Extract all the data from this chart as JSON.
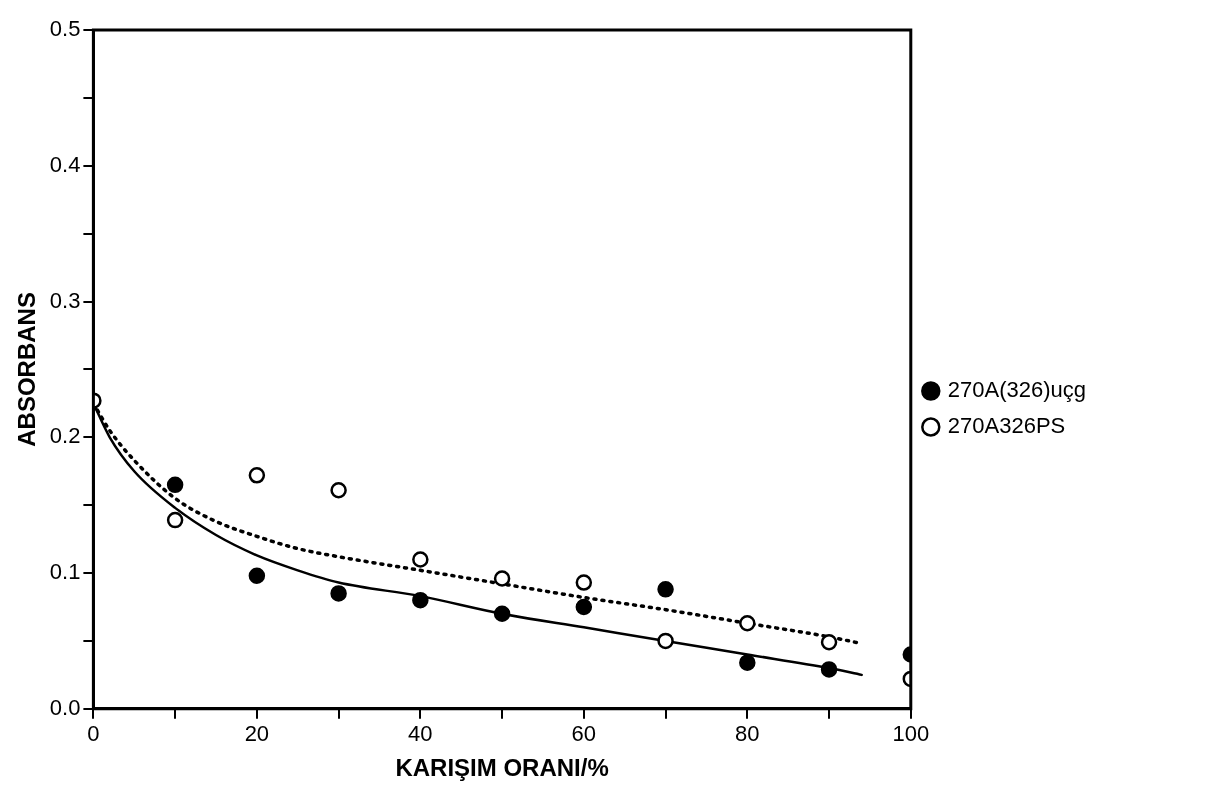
{
  "chart_data": {
    "type": "scatter",
    "xlabel": "KARIŞIM ORANI/%",
    "ylabel": "ABSORBANS",
    "xlim": [
      0,
      100
    ],
    "ylim": [
      0,
      0.5
    ],
    "xticks": [
      0,
      {
        "value": 10,
        "label": null
      },
      20,
      {
        "value": 30,
        "label": null
      },
      40,
      {
        "value": 50,
        "label": null
      },
      60,
      {
        "value": 70,
        "label": null
      },
      80,
      {
        "value": 90,
        "label": null
      },
      100
    ],
    "yticks": [
      {
        "value": 0,
        "label": "0.0"
      },
      {
        "value": 0.05,
        "label": null
      },
      0.1,
      {
        "value": 0.15,
        "label": null
      },
      0.2,
      {
        "value": 0.25,
        "label": null
      },
      0.3,
      {
        "value": 0.35,
        "label": null
      },
      0.4,
      {
        "value": 0.45,
        "label": null
      },
      0.5
    ],
    "grid": false,
    "legend": "right",
    "marker": "circle",
    "series": [
      {
        "name": "270A(326)uçg",
        "color": "#000000",
        "x": [
          10,
          20,
          30,
          40,
          50,
          60,
          70,
          80,
          90,
          100
        ],
        "values": [
          0.165,
          0.098,
          0.085,
          0.08,
          0.07,
          0.075,
          0.088,
          0.034,
          0.029,
          0.04
        ]
      },
      {
        "name": "270A326PS",
        "color": "#000000",
        "x": [
          0,
          10,
          20,
          30,
          40,
          50,
          60,
          70,
          80,
          90,
          100
        ],
        "values": [
          0.227,
          0.139,
          0.172,
          0.161,
          0.11,
          0.096,
          0.093,
          0.05,
          0.063,
          0.049,
          0.022
        ]
      },
      {
        "type": "line",
        "color": "#000000",
        "line_style": "solid",
        "marker": "none",
        "x": [
          0,
          2,
          5,
          10,
          15,
          20,
          25,
          30,
          40,
          50,
          60,
          70,
          80,
          90,
          94
        ],
        "values": [
          0.225,
          0.2,
          0.175,
          0.148,
          0.128,
          0.113,
          0.102,
          0.093,
          0.083,
          0.07,
          0.06,
          0.05,
          0.04,
          0.03,
          0.025
        ]
      },
      {
        "type": "line",
        "color": "#000000",
        "line_style": "dotted",
        "marker": "none",
        "x": [
          0,
          2,
          5,
          10,
          15,
          20,
          25,
          30,
          40,
          50,
          60,
          70,
          80,
          90,
          94
        ],
        "values": [
          0.225,
          0.205,
          0.183,
          0.155,
          0.138,
          0.127,
          0.118,
          0.112,
          0.102,
          0.092,
          0.082,
          0.073,
          0.063,
          0.053,
          0.048
        ]
      }
    ]
  }
}
